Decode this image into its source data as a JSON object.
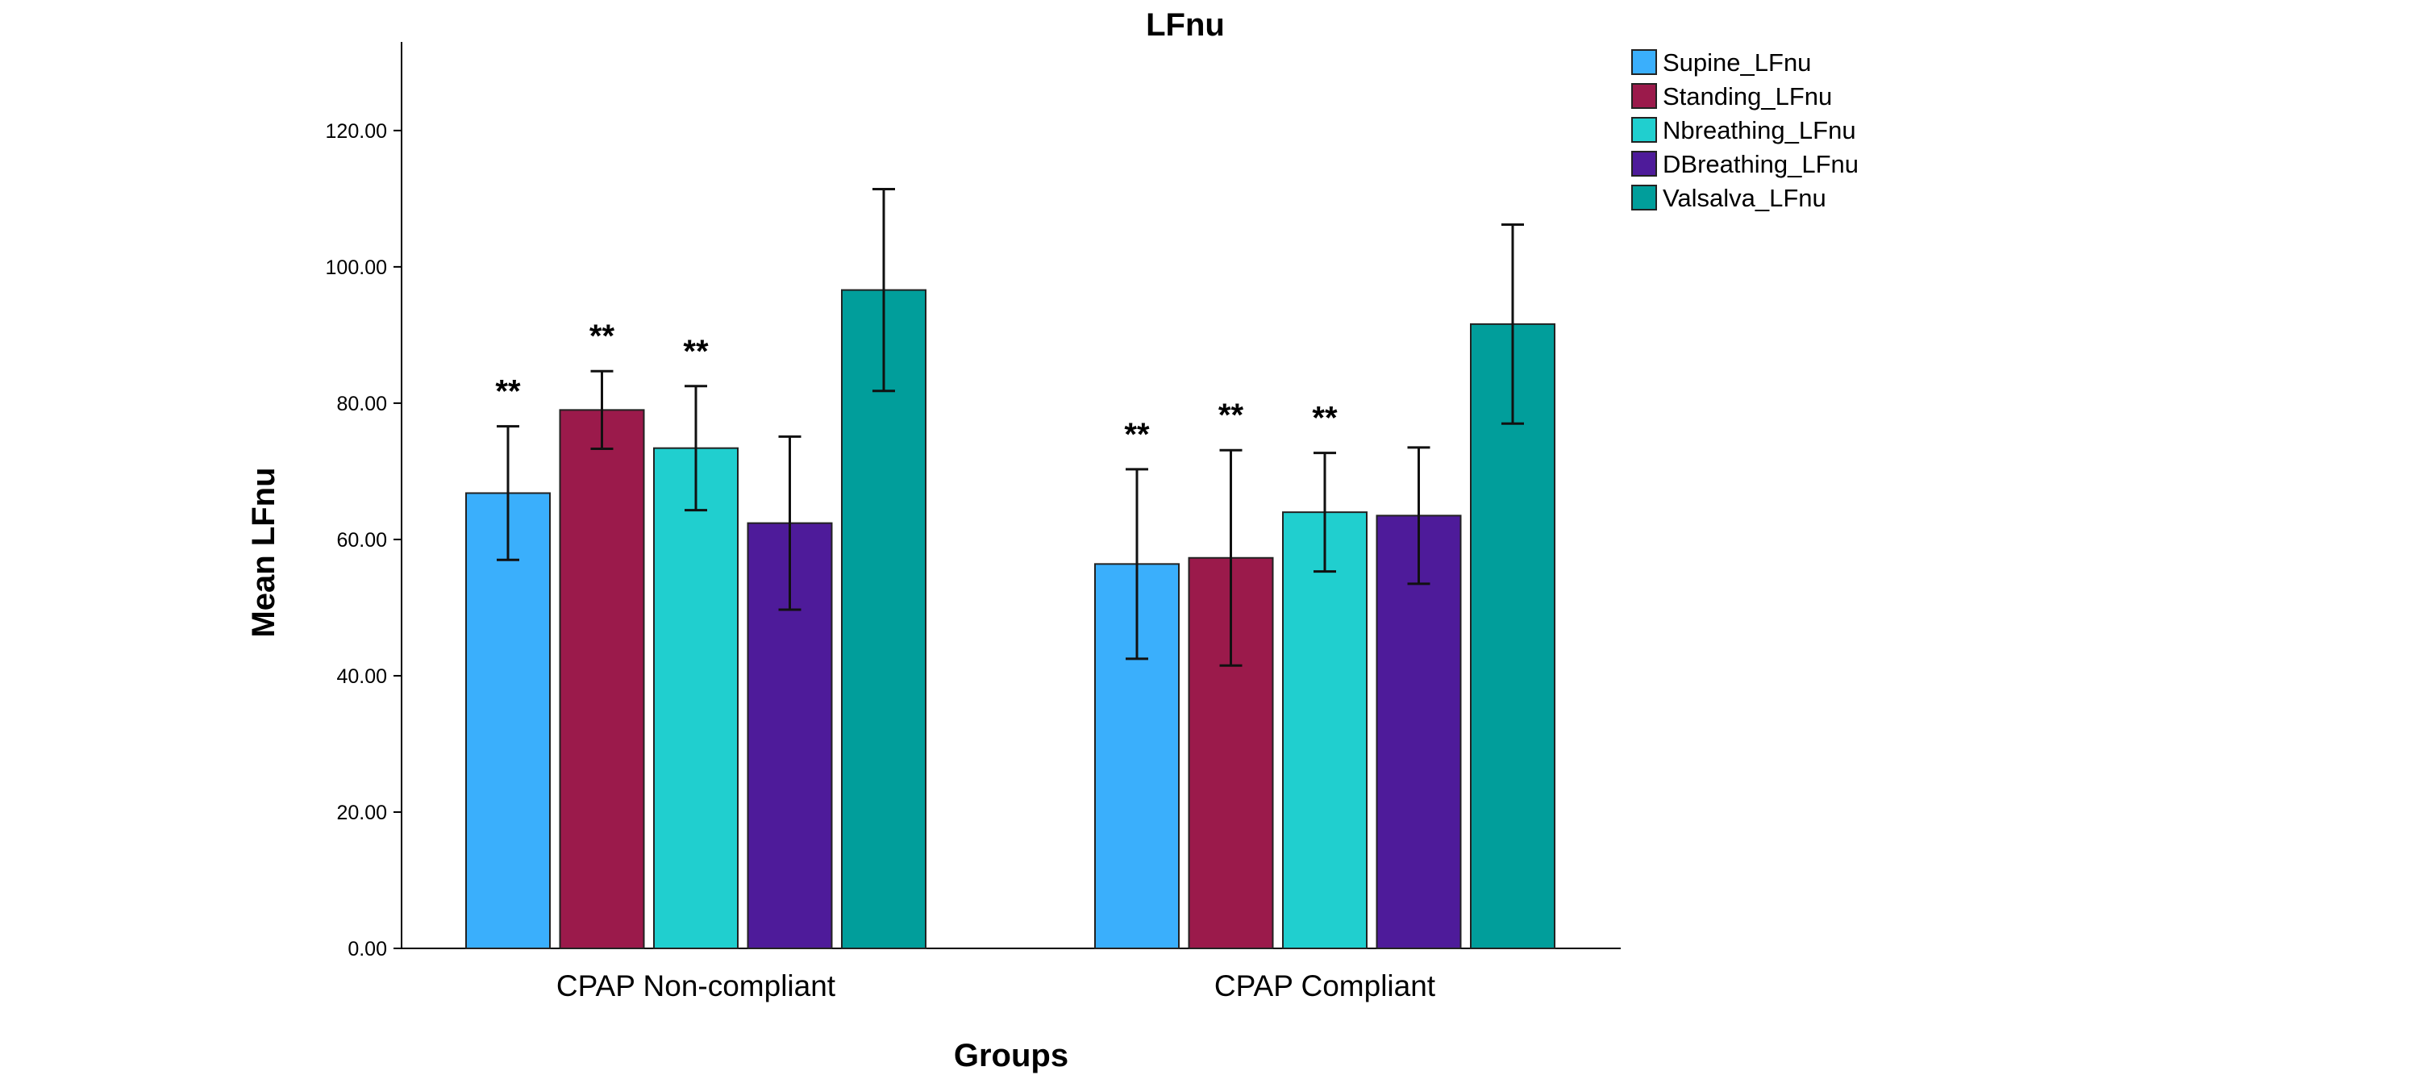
{
  "chart_data": {
    "type": "bar",
    "title": "LFnu",
    "xlabel": "Groups",
    "ylabel": "Mean LFnu",
    "ylim": [
      0,
      133
    ],
    "yticks": [
      0,
      20,
      40,
      60,
      80,
      100,
      120
    ],
    "ytick_labels": [
      "0.00",
      "20.00",
      "40.00",
      "60.00",
      "80.00",
      "100.00",
      "120.00"
    ],
    "grid": false,
    "legend_position": "top-right",
    "categories": [
      "CPAP Non-compliant",
      "CPAP Compliant"
    ],
    "series": [
      {
        "name": "Supine_LFnu",
        "color": "#3aaffc",
        "values": [
          66.8,
          56.4
        ],
        "err_low": [
          57.0,
          42.5
        ],
        "err_high": [
          76.6,
          70.3
        ],
        "annotations": [
          "**",
          "**"
        ]
      },
      {
        "name": "Standing_LFnu",
        "color": "#9b1a4b",
        "values": [
          79.0,
          57.3
        ],
        "err_low": [
          73.3,
          41.5
        ],
        "err_high": [
          84.7,
          73.1
        ],
        "annotations": [
          "**",
          "**"
        ]
      },
      {
        "name": "Nbreathing_LFnu",
        "color": "#20cfcf",
        "values": [
          73.4,
          64.0
        ],
        "err_low": [
          64.3,
          55.3
        ],
        "err_high": [
          82.5,
          72.7
        ],
        "annotations": [
          "**",
          "**"
        ]
      },
      {
        "name": "DBreathing_LFnu",
        "color": "#4e1b9a",
        "values": [
          62.4,
          63.5
        ],
        "err_low": [
          49.7,
          53.5
        ],
        "err_high": [
          75.1,
          73.5
        ],
        "annotations": [
          "",
          ""
        ]
      },
      {
        "name": "Valsalva_LFnu",
        "color": "#019e9b",
        "values": [
          96.6,
          91.6
        ],
        "err_low": [
          81.8,
          77.0
        ],
        "err_high": [
          111.4,
          106.2
        ],
        "annotations": [
          "",
          ""
        ]
      }
    ]
  }
}
